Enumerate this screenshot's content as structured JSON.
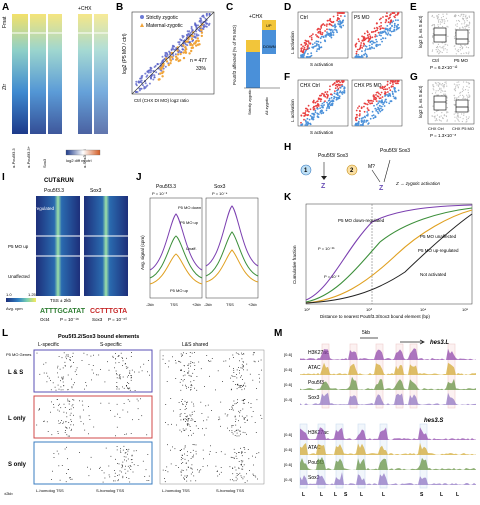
{
  "panels": {
    "A": {
      "letter": "A",
      "row_labels": [
        "Fmat",
        "Ztr"
      ],
      "tag": "+CHX",
      "cols": [
        "α-Pou5f3.3",
        "α-Pou5f3.3+",
        "Sox3",
        "α-Sox3 P5"
      ],
      "colorbar_label": "log2 diff vs ctrl"
    },
    "B": {
      "letter": "B",
      "legend": [
        "Strictly zygotic",
        "Maternal-zygotic"
      ],
      "ylabel": "log2 (P5 MO / ctrl)",
      "xlabel": "Ctrl (CHX DI MO) log2 ratio",
      "note1": "n = 477",
      "note2": "33%"
    },
    "C": {
      "letter": "C",
      "ylabel": "Pou5f3 affected (% of P5 MO)",
      "labels": [
        "DOWN",
        "UP"
      ],
      "tag": "+CHX",
      "xlabels": [
        "Strictly zygotic",
        "All zygotic"
      ]
    },
    "D": {
      "letter": "D",
      "titles": [
        "Ctrl",
        "P5 MO"
      ],
      "ylabel": "L activation",
      "xlabel": "S activation"
    },
    "E": {
      "letter": "E",
      "ylabel": "log2 (L vs S act)",
      "xlabels": [
        "Ctrl",
        "P5 MO"
      ],
      "pval": "P = 6.2×10⁻¹²"
    },
    "F": {
      "letter": "F",
      "titles": [
        "CHX Ctrl",
        "CHX P5 MO"
      ],
      "ylabel": "L activation",
      "xlabel": "S activation"
    },
    "G": {
      "letter": "G",
      "ylabel": "log2 (L vs S act)",
      "xlabels": [
        "CHX Ctrl",
        "CHX P5 MO"
      ],
      "pval": "P = 1.3×10⁻⁸"
    },
    "H": {
      "letter": "H",
      "tf1": "Pou5f3/ Sox3",
      "tf2": "Pou5f3/ Sox3",
      "m": "M?",
      "z1": "Z",
      "z2": "Z",
      "caption": "Z → zygotic activation"
    },
    "I": {
      "letter": "I",
      "title": "CUT&RUN",
      "cols": [
        "Pou5f3.3",
        "Sox3"
      ],
      "rows": [
        "P5 MO down regulated",
        "P5 MO up",
        "Unaffected"
      ],
      "scale": "TSS ± 2kb",
      "cbar_min": "1.0",
      "cbar_max": "1.25",
      "cbar_label": "Avg. cpm",
      "motifs": [
        "ATTTGCATAT",
        "CCTTTGTA"
      ],
      "motif_names": [
        "Oct4",
        "Sox3"
      ],
      "motif_p": [
        "P = 10⁻¹⁸",
        "P = 10⁻⁶⁰"
      ]
    },
    "J": {
      "letter": "J",
      "titles": [
        "Pou5f3.3",
        "Sox3"
      ],
      "ylabel": "Avg. signal (cpm)",
      "pvals": [
        "P = 10⁻³",
        "P = 10⁻⁴"
      ],
      "xlabels": [
        "-2kb",
        "TSS",
        "+2kb",
        "-2kb",
        "TSS",
        "+2kb"
      ],
      "annos": [
        "P5 MO down",
        "P5 MO up",
        "Unaff.",
        "P5 MO up"
      ]
    },
    "K": {
      "letter": "K",
      "ylabel": "Cumulative fraction",
      "xlabel": "Distance to nearest Pou5f3.3/Sox3 bound element (bp)",
      "ticks": [
        "10²",
        "10³",
        "10⁴",
        "10⁵"
      ],
      "series": [
        "P5 MO down-regulated",
        "P5 MO up-regulated",
        "Not activated",
        "P5 MO unaffected"
      ],
      "pvals": [
        "P = 10⁻²⁵",
        "P = 10⁻⁸"
      ]
    },
    "L": {
      "letter": "L",
      "title": "Pou5f3.2/Sox3 bound elements",
      "sub": [
        "L-specific",
        "S-specific",
        "L&S shared"
      ],
      "rows": [
        "L & S",
        "L only",
        "S only"
      ],
      "ylabel": "P5 MO Genes",
      "xlabels": [
        "L-homolog TSS",
        "S-homolog TSS",
        "L-homolog TSS",
        "S-homolog TSS"
      ],
      "scale": "±2kb"
    },
    "M": {
      "letter": "M",
      "scale": "5kb",
      "genes": [
        "hes3.L",
        "hes3.S"
      ],
      "tracks": [
        "H3K27ac",
        "ATAC",
        "Pou5f3",
        "Sox3"
      ],
      "ranges": [
        "[0-6]",
        "[0-6]",
        "[0-6]",
        "[0-4]"
      ],
      "bottom_labels": [
        "L",
        "L",
        "L",
        "S",
        "L",
        "L",
        "S",
        "L",
        "L"
      ]
    }
  }
}
